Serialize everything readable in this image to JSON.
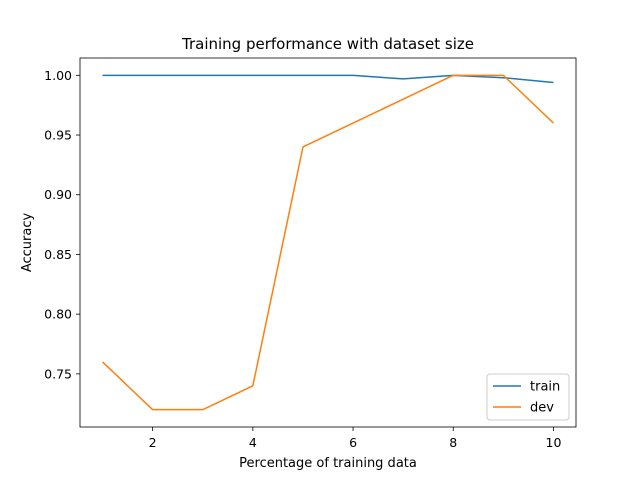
{
  "chart_data": {
    "type": "line",
    "title": "Training performance with dataset size",
    "xlabel": "Percentage of training data",
    "ylabel": "Accuracy",
    "x": [
      1,
      2,
      3,
      4,
      5,
      6,
      7,
      8,
      9,
      10
    ],
    "xlim": [
      0.55,
      10.45
    ],
    "ylim": [
      0.7055,
      1.0145
    ],
    "xticks": [
      2,
      4,
      6,
      8,
      10
    ],
    "yticks": [
      0.75,
      0.8,
      0.85,
      0.9,
      0.95,
      1.0
    ],
    "ytick_labels": [
      "0.75",
      "0.80",
      "0.85",
      "0.90",
      "0.95",
      "1.00"
    ],
    "grid": false,
    "legend_position": "lower-right",
    "series": [
      {
        "name": "train",
        "color": "#1f77b4",
        "values": [
          1.0,
          1.0,
          1.0,
          1.0,
          1.0,
          1.0,
          0.997,
          1.0,
          0.998,
          0.994
        ]
      },
      {
        "name": "dev",
        "color": "#ff7f0e",
        "values": [
          0.76,
          0.72,
          0.72,
          0.74,
          0.94,
          0.96,
          0.98,
          1.0,
          1.0,
          0.96
        ]
      }
    ]
  }
}
